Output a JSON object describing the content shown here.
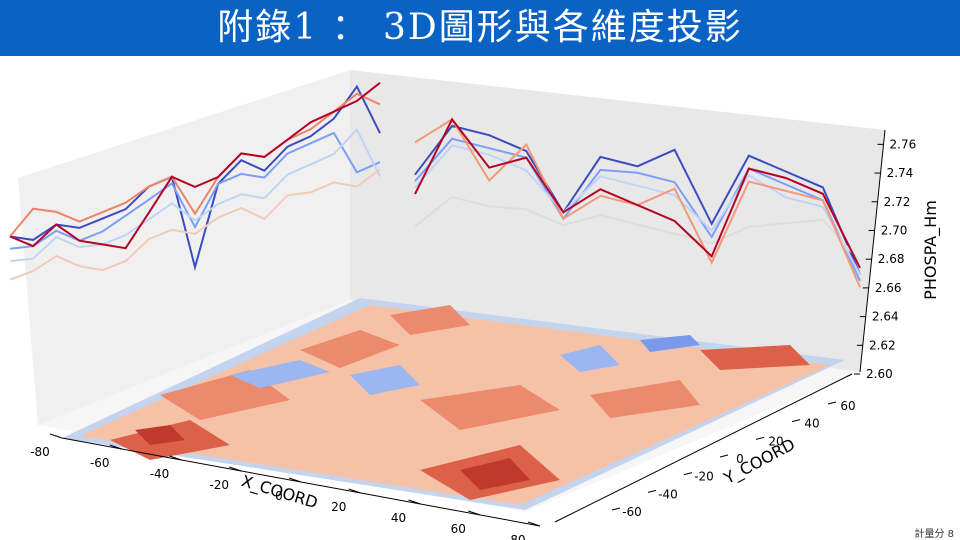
{
  "slide": {
    "title": "附錄1 ： 3D圖形與各維度投影",
    "title_bg": "#0a63c4",
    "footer": "計量分 8"
  },
  "chart_data": {
    "type": "line",
    "projection": "3d surface (contour) with line projections on back walls",
    "xlabel": "X_COORD",
    "ylabel": "Y_COORD",
    "zlabel": "PHOSPA_Hm",
    "x_ticks": [
      "-80",
      "-60",
      "-40",
      "-20",
      "0",
      "20",
      "40",
      "60",
      "80"
    ],
    "y_ticks": [
      "-60",
      "-40",
      "-20",
      "0",
      "20",
      "40",
      "60"
    ],
    "z_ticks": [
      "2.60",
      "2.62",
      "2.64",
      "2.66",
      "2.68",
      "2.70",
      "2.72",
      "2.74",
      "2.76"
    ],
    "zlim": [
      2.6,
      2.77
    ],
    "colormap": "coolwarm",
    "left_wall_series": [
      {
        "color": "#3b4cc0",
        "values": [
          2.7,
          2.695,
          2.705,
          2.7,
          2.705,
          2.71,
          2.725,
          2.73,
          2.66,
          2.72,
          2.735,
          2.725,
          2.74,
          2.745,
          2.755,
          2.775,
          2.74
        ]
      },
      {
        "color": "#7b9ff9",
        "values": [
          2.69,
          2.69,
          2.7,
          2.69,
          2.695,
          2.705,
          2.715,
          2.725,
          2.69,
          2.72,
          2.725,
          2.72,
          2.735,
          2.74,
          2.745,
          2.715,
          2.72
        ]
      },
      {
        "color": "#c0d4f5",
        "values": [
          2.68,
          2.68,
          2.695,
          2.685,
          2.685,
          2.69,
          2.7,
          2.71,
          2.695,
          2.705,
          2.71,
          2.705,
          2.72,
          2.725,
          2.73,
          2.745,
          2.71
        ]
      },
      {
        "color": "#f2cbb7",
        "values": [
          2.665,
          2.67,
          2.68,
          2.67,
          2.665,
          2.67,
          2.685,
          2.69,
          2.685,
          2.695,
          2.7,
          2.69,
          2.705,
          2.705,
          2.71,
          2.705,
          2.715
        ]
      },
      {
        "color": "#ee8468",
        "values": [
          2.7,
          2.72,
          2.715,
          2.705,
          2.71,
          2.715,
          2.725,
          2.73,
          2.7,
          2.725,
          2.74,
          2.735,
          2.745,
          2.75,
          2.76,
          2.77,
          2.76
        ]
      },
      {
        "color": "#b40426",
        "values": [
          2.7,
          2.69,
          2.705,
          2.69,
          2.685,
          2.68,
          2.705,
          2.73,
          2.72,
          2.725,
          2.74,
          2.735,
          2.745,
          2.755,
          2.76,
          2.765,
          2.775
        ]
      }
    ],
    "right_wall_series": [
      {
        "color": "#3b4cc0",
        "values": [
          2.72,
          2.76,
          2.755,
          2.745,
          2.7,
          2.745,
          2.74,
          2.755,
          2.7,
          2.755,
          2.745,
          2.735,
          2.67
        ]
      },
      {
        "color": "#7b9ff9",
        "values": [
          2.715,
          2.75,
          2.745,
          2.74,
          2.695,
          2.735,
          2.735,
          2.73,
          2.69,
          2.745,
          2.735,
          2.725,
          2.665
        ]
      },
      {
        "color": "#c0d4f5",
        "values": [
          2.71,
          2.745,
          2.74,
          2.73,
          2.7,
          2.73,
          2.725,
          2.72,
          2.695,
          2.74,
          2.725,
          2.72,
          2.67
        ]
      },
      {
        "color": "#dddddd",
        "values": [
          2.68,
          2.705,
          2.7,
          2.7,
          2.69,
          2.7,
          2.695,
          2.69,
          2.685,
          2.7,
          2.705,
          2.71,
          2.68
        ]
      },
      {
        "color": "#f4987a",
        "values": [
          2.745,
          2.765,
          2.72,
          2.75,
          2.695,
          2.715,
          2.71,
          2.725,
          2.67,
          2.735,
          2.73,
          2.725,
          2.66
        ]
      },
      {
        "color": "#b40426",
        "values": [
          2.705,
          2.765,
          2.73,
          2.74,
          2.7,
          2.72,
          2.71,
          2.7,
          2.675,
          2.745,
          2.74,
          2.73,
          2.675
        ]
      }
    ]
  }
}
